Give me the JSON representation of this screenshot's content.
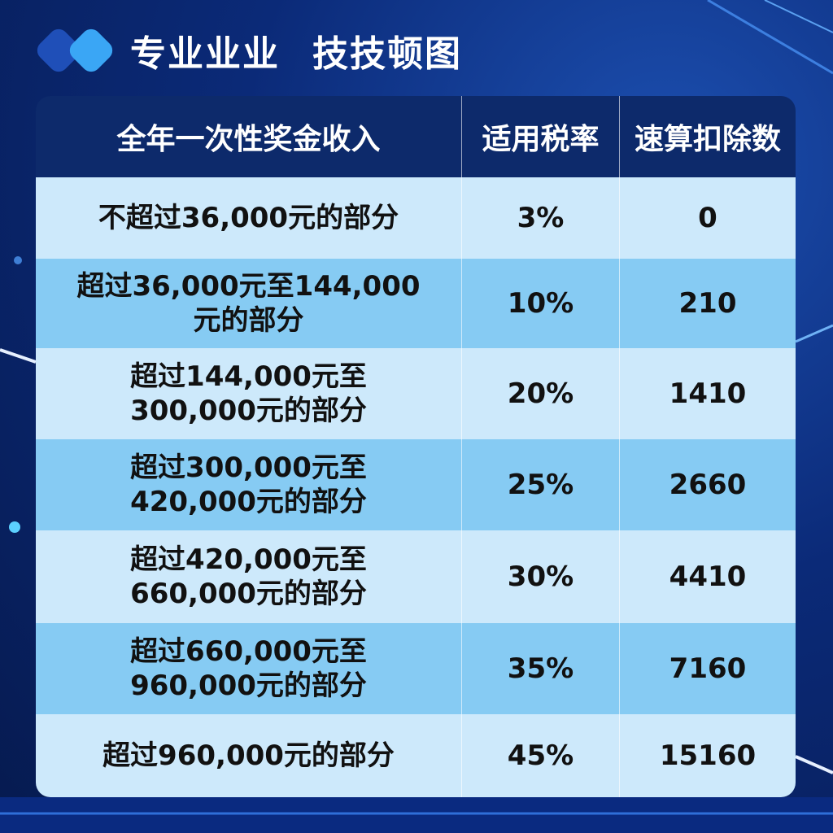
{
  "header": {
    "title": [
      "专业业业",
      "技技顿图"
    ]
  },
  "table": {
    "columns": [
      "全年一次性奖金收入",
      "适用税率",
      "速算扣除数"
    ],
    "rows": [
      [
        "不超过36,000元的部分",
        "3%",
        "0"
      ],
      [
        "超过36,000元至144,000元的部分",
        "10%",
        "210"
      ],
      [
        "超过144,000元至300,000元的部分",
        "20%",
        "1410"
      ],
      [
        "超过300,000元至420,000元的部分",
        "25%",
        "2660"
      ],
      [
        "超过420,000元至660,000元的部分",
        "30%",
        "4410"
      ],
      [
        "超过660,000元至960,000元的部分",
        "35%",
        "7160"
      ],
      [
        "超过960,000元的部分",
        "45%",
        "15160"
      ]
    ]
  }
}
